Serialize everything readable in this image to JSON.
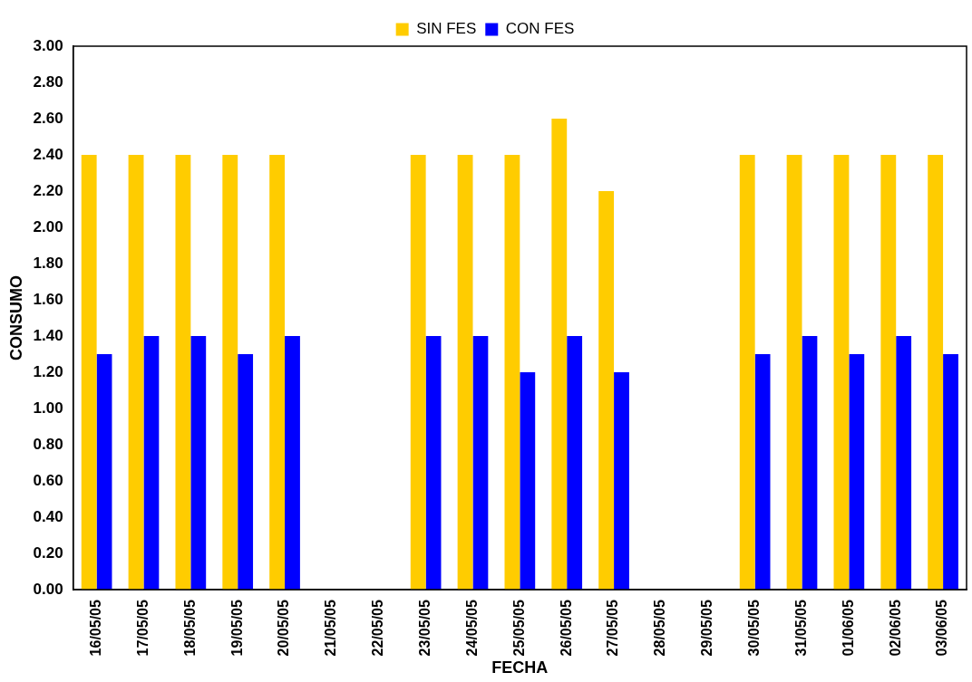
{
  "chart_data": {
    "type": "bar",
    "xlabel": "FECHA",
    "ylabel": "CONSUMO",
    "categories": [
      "16/05/05",
      "17/05/05",
      "18/05/05",
      "19/05/05",
      "20/05/05",
      "21/05/05",
      "22/05/05",
      "23/05/05",
      "24/05/05",
      "25/05/05",
      "26/05/05",
      "27/05/05",
      "28/05/05",
      "29/05/05",
      "30/05/05",
      "31/05/05",
      "01/06/05",
      "02/06/05",
      "03/06/05"
    ],
    "series": [
      {
        "name": "SIN FES",
        "color": "#ffcc00",
        "values": [
          2.4,
          2.4,
          2.4,
          2.4,
          2.4,
          0,
          0,
          2.4,
          2.4,
          2.4,
          2.6,
          2.2,
          0,
          0,
          2.4,
          2.4,
          2.4,
          2.4,
          2.4
        ]
      },
      {
        "name": "CON FES",
        "color": "#0000ff",
        "values": [
          1.3,
          1.4,
          1.4,
          1.3,
          1.4,
          0,
          0,
          1.4,
          1.4,
          1.2,
          1.4,
          1.2,
          0,
          0,
          1.3,
          1.4,
          1.3,
          1.4,
          1.3
        ]
      }
    ],
    "ylim": [
      0,
      3
    ],
    "yticks": [
      {
        "value": 0,
        "label": "0.00"
      },
      {
        "value": 0.2,
        "label": "0.20"
      },
      {
        "value": 0.4,
        "label": "0.40"
      },
      {
        "value": 0.6,
        "label": "0.60"
      },
      {
        "value": 0.8,
        "label": "0.80"
      },
      {
        "value": 1,
        "label": "1.00"
      },
      {
        "value": 1.2,
        "label": "1.20"
      },
      {
        "value": 1.4,
        "label": "1.40"
      },
      {
        "value": 1.6,
        "label": "1.60"
      },
      {
        "value": 1.8,
        "label": "1.80"
      },
      {
        "value": 2,
        "label": "2.00"
      },
      {
        "value": 2.2,
        "label": "2.20"
      },
      {
        "value": 2.4,
        "label": "2.40"
      },
      {
        "value": 2.6,
        "label": "2.60"
      },
      {
        "value": 2.8,
        "label": "2.80"
      },
      {
        "value": 3,
        "label": "3.00"
      }
    ],
    "grid": false,
    "legend": "top"
  }
}
